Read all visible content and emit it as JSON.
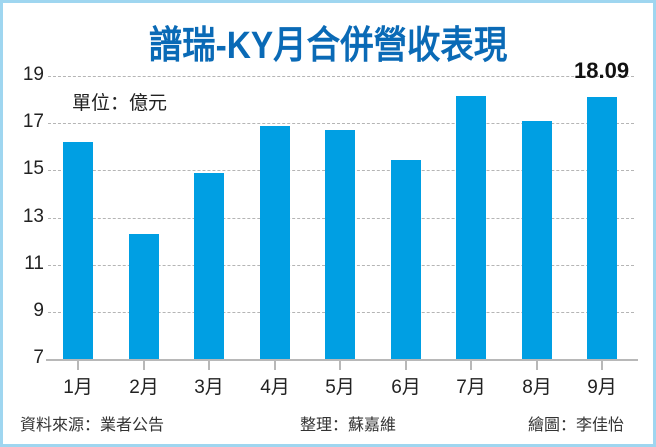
{
  "title": "譜瑞-KY月合併營收表現",
  "unit_label": "單位：億元",
  "annotation": "18.09",
  "footer": {
    "source": "資料來源：業者公告",
    "editor": "整理：蘇嘉維",
    "illustrator": "繪圖：李佳怡"
  },
  "colors": {
    "bar": "#009fe3",
    "title": "#0a6ab6",
    "frame": "#9fd6f0"
  },
  "chart_data": {
    "type": "bar",
    "title": "譜瑞-KY月合併營收表現",
    "xlabel": "",
    "ylabel": "單位：億元",
    "categories": [
      "1月",
      "2月",
      "3月",
      "4月",
      "5月",
      "6月",
      "7月",
      "8月",
      "9月"
    ],
    "values": [
      16.2,
      12.32,
      14.87,
      16.89,
      16.69,
      15.42,
      18.15,
      17.11,
      18.09
    ],
    "ylim": [
      7,
      19
    ],
    "yticks": [
      "19",
      "17",
      "15",
      "13",
      "11",
      "9",
      "7"
    ],
    "grid": true,
    "legend": null,
    "annotations": [
      {
        "category": "9月",
        "text": "18.09"
      }
    ]
  }
}
